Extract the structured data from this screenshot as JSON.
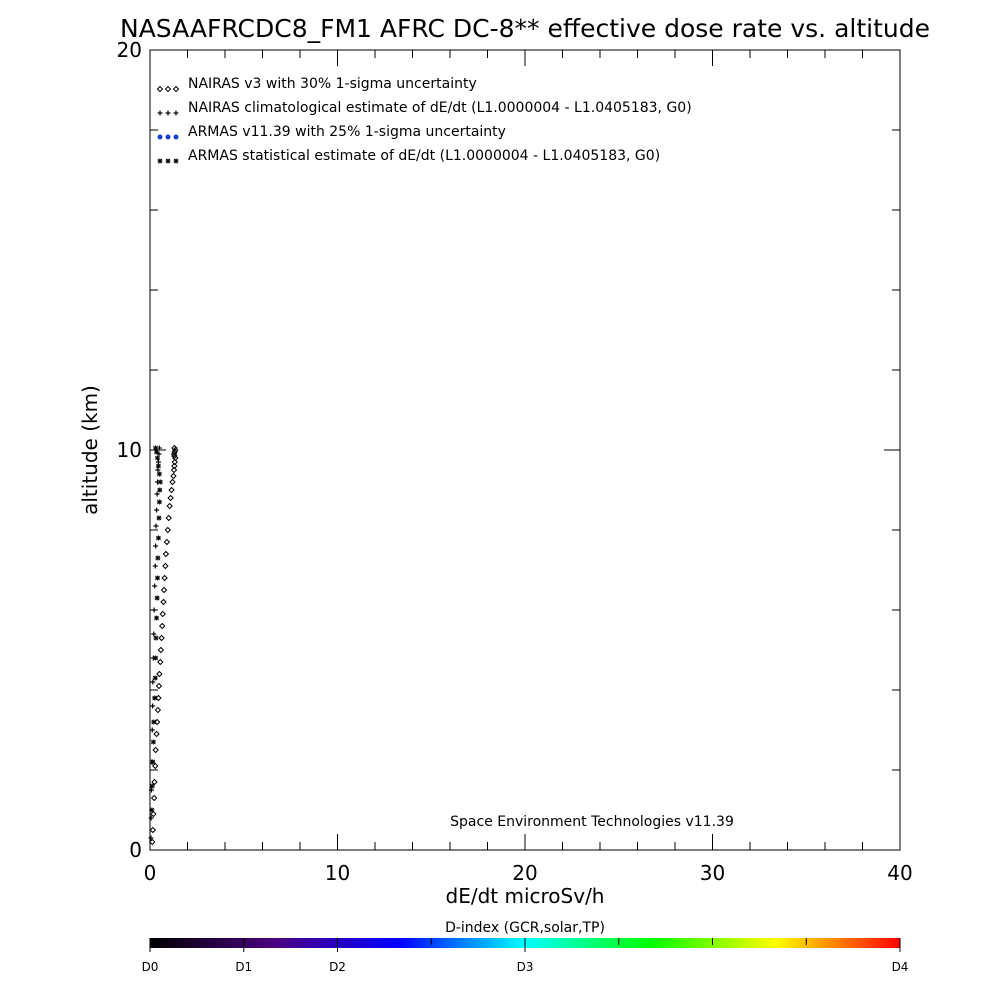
{
  "chart_data": {
    "type": "scatter",
    "title": "NASAAFRCDC8_FM1 AFRC DC-8** effective dose rate vs. altitude",
    "xlabel": "dE/dt microSv/h",
    "ylabel": "altitude (km)",
    "xlim": [
      0,
      40
    ],
    "ylim": [
      0,
      20
    ],
    "x_ticks": [
      0,
      10,
      20,
      30,
      40
    ],
    "y_ticks": [
      0,
      10,
      20
    ],
    "x_tick_labels": [
      "0",
      "10",
      "20",
      "30",
      "40"
    ],
    "y_tick_labels": [
      "0",
      "10",
      "20"
    ],
    "credit": "Space Environment Technologies v11.39",
    "legend_position": "top-left",
    "legend": [
      {
        "marker": "diamond",
        "text": "NAIRAS v3 with 30% 1-sigma uncertainty",
        "color": "#000000"
      },
      {
        "marker": "plus",
        "text": "NAIRAS climatological estimate of dE/dt (L1.0000004 - L1.0405183, G0)",
        "color": "#000000"
      },
      {
        "marker": "dot",
        "text": "ARMAS v11.39 with 25% 1-sigma uncertainty",
        "color": "#1a3fd6"
      },
      {
        "marker": "asterisk",
        "text": "ARMAS statistical estimate of dE/dt (L1.0000004 - L1.0405183, G0)",
        "color": "#000000"
      }
    ],
    "series": [
      {
        "name": "NAIRAS v3 with 30% 1-sigma uncertainty",
        "marker": "diamond",
        "x": [
          0.12,
          0.15,
          0.18,
          0.22,
          0.24,
          0.28,
          0.3,
          0.35,
          0.38,
          0.42,
          0.45,
          0.48,
          0.5,
          0.55,
          0.58,
          0.62,
          0.65,
          0.68,
          0.72,
          0.75,
          0.78,
          0.82,
          0.85,
          0.9,
          0.95,
          1.0,
          1.05,
          1.1,
          1.15,
          1.2,
          1.25,
          1.28,
          1.3,
          1.32,
          1.35,
          1.3,
          1.28,
          1.32,
          1.35,
          1.3
        ],
        "y": [
          0.2,
          0.5,
          0.9,
          1.3,
          1.7,
          2.1,
          2.5,
          2.9,
          3.2,
          3.5,
          3.8,
          4.1,
          4.4,
          4.7,
          5.0,
          5.3,
          5.6,
          5.9,
          6.2,
          6.5,
          6.8,
          7.1,
          7.4,
          7.7,
          8.0,
          8.3,
          8.6,
          8.8,
          9.0,
          9.2,
          9.35,
          9.5,
          9.6,
          9.7,
          9.8,
          9.85,
          9.9,
          9.95,
          10.0,
          10.05
        ]
      },
      {
        "name": "NAIRAS climatological estimate of dE/dt (L1.0000004 - L1.0405183, G0)",
        "marker": "plus",
        "x": [
          0.05,
          0.06,
          0.08,
          0.1,
          0.12,
          0.14,
          0.15,
          0.18,
          0.2,
          0.22,
          0.25,
          0.28,
          0.3,
          0.32,
          0.35,
          0.38,
          0.4,
          0.42,
          0.45,
          0.48,
          0.5
        ],
        "y": [
          0.3,
          0.8,
          1.5,
          2.2,
          3.0,
          3.6,
          4.2,
          4.8,
          5.4,
          6.0,
          6.6,
          7.1,
          7.6,
          8.1,
          8.5,
          8.9,
          9.2,
          9.5,
          9.7,
          9.9,
          10.05
        ]
      },
      {
        "name": "ARMAS statistical estimate of dE/dt (L1.0000004 - L1.0405183, G0)",
        "marker": "asterisk",
        "x": [
          0.1,
          0.12,
          0.15,
          0.18,
          0.2,
          0.25,
          0.28,
          0.3,
          0.32,
          0.35,
          0.38,
          0.4,
          0.42,
          0.45,
          0.48,
          0.5,
          0.52,
          0.55,
          0.5,
          0.45,
          0.4,
          0.35,
          0.3
        ],
        "y": [
          1.0,
          1.6,
          2.2,
          2.7,
          3.2,
          3.8,
          4.3,
          4.8,
          5.3,
          5.8,
          6.3,
          6.8,
          7.3,
          7.8,
          8.3,
          8.7,
          9.0,
          9.2,
          9.4,
          9.6,
          9.8,
          9.95,
          10.05
        ]
      }
    ],
    "colorbar": {
      "title": "D-index (GCR,solar,TP)",
      "labels": [
        {
          "text": "D0",
          "pos": 0.0
        },
        {
          "text": "D1",
          "pos": 0.125
        },
        {
          "text": "D2",
          "pos": 0.25
        },
        {
          "text": "D3",
          "pos": 0.5
        },
        {
          "text": "D4",
          "pos": 1.0
        }
      ],
      "colors": [
        "#000000",
        "#4b0082",
        "#0000ff",
        "#00ffff",
        "#00ff00",
        "#ffff00",
        "#ff0000"
      ]
    }
  }
}
